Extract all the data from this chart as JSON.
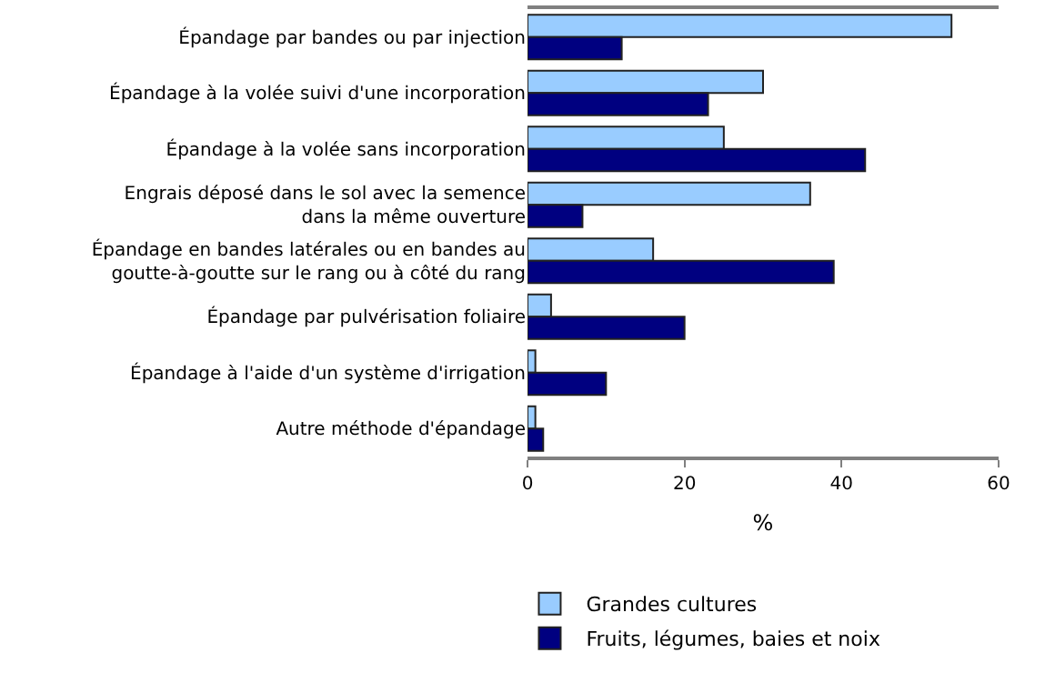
{
  "chart_data": {
    "type": "bar",
    "orientation": "horizontal",
    "xlabel": "%",
    "categories": [
      "Épandage par bandes ou par injection",
      "Épandage à la volée suivi d'une incorporation",
      "Épandage à la volée sans incorporation",
      "Engrais déposé dans le sol avec la semence dans la même ouverture",
      "Épandage en bandes latérales ou en bandes au goutte-à-goutte sur le rang ou à côté du rang",
      "Épandage par pulvérisation foliaire",
      "Épandage à l'aide d'un système d'irrigation",
      "Autre méthode d'épandage"
    ],
    "series": [
      {
        "name": "Grandes cultures",
        "color": "#99ccff",
        "values": [
          54,
          30,
          25,
          36,
          16,
          3,
          1,
          1
        ]
      },
      {
        "name": "Fruits, légumes, baies et noix",
        "color": "#000080",
        "values": [
          12,
          23,
          43,
          7,
          39,
          20,
          10,
          2
        ]
      }
    ],
    "xlim": [
      0,
      60
    ],
    "xticks": [
      0,
      20,
      40,
      60
    ],
    "grid": false,
    "legend": "bottom left"
  }
}
